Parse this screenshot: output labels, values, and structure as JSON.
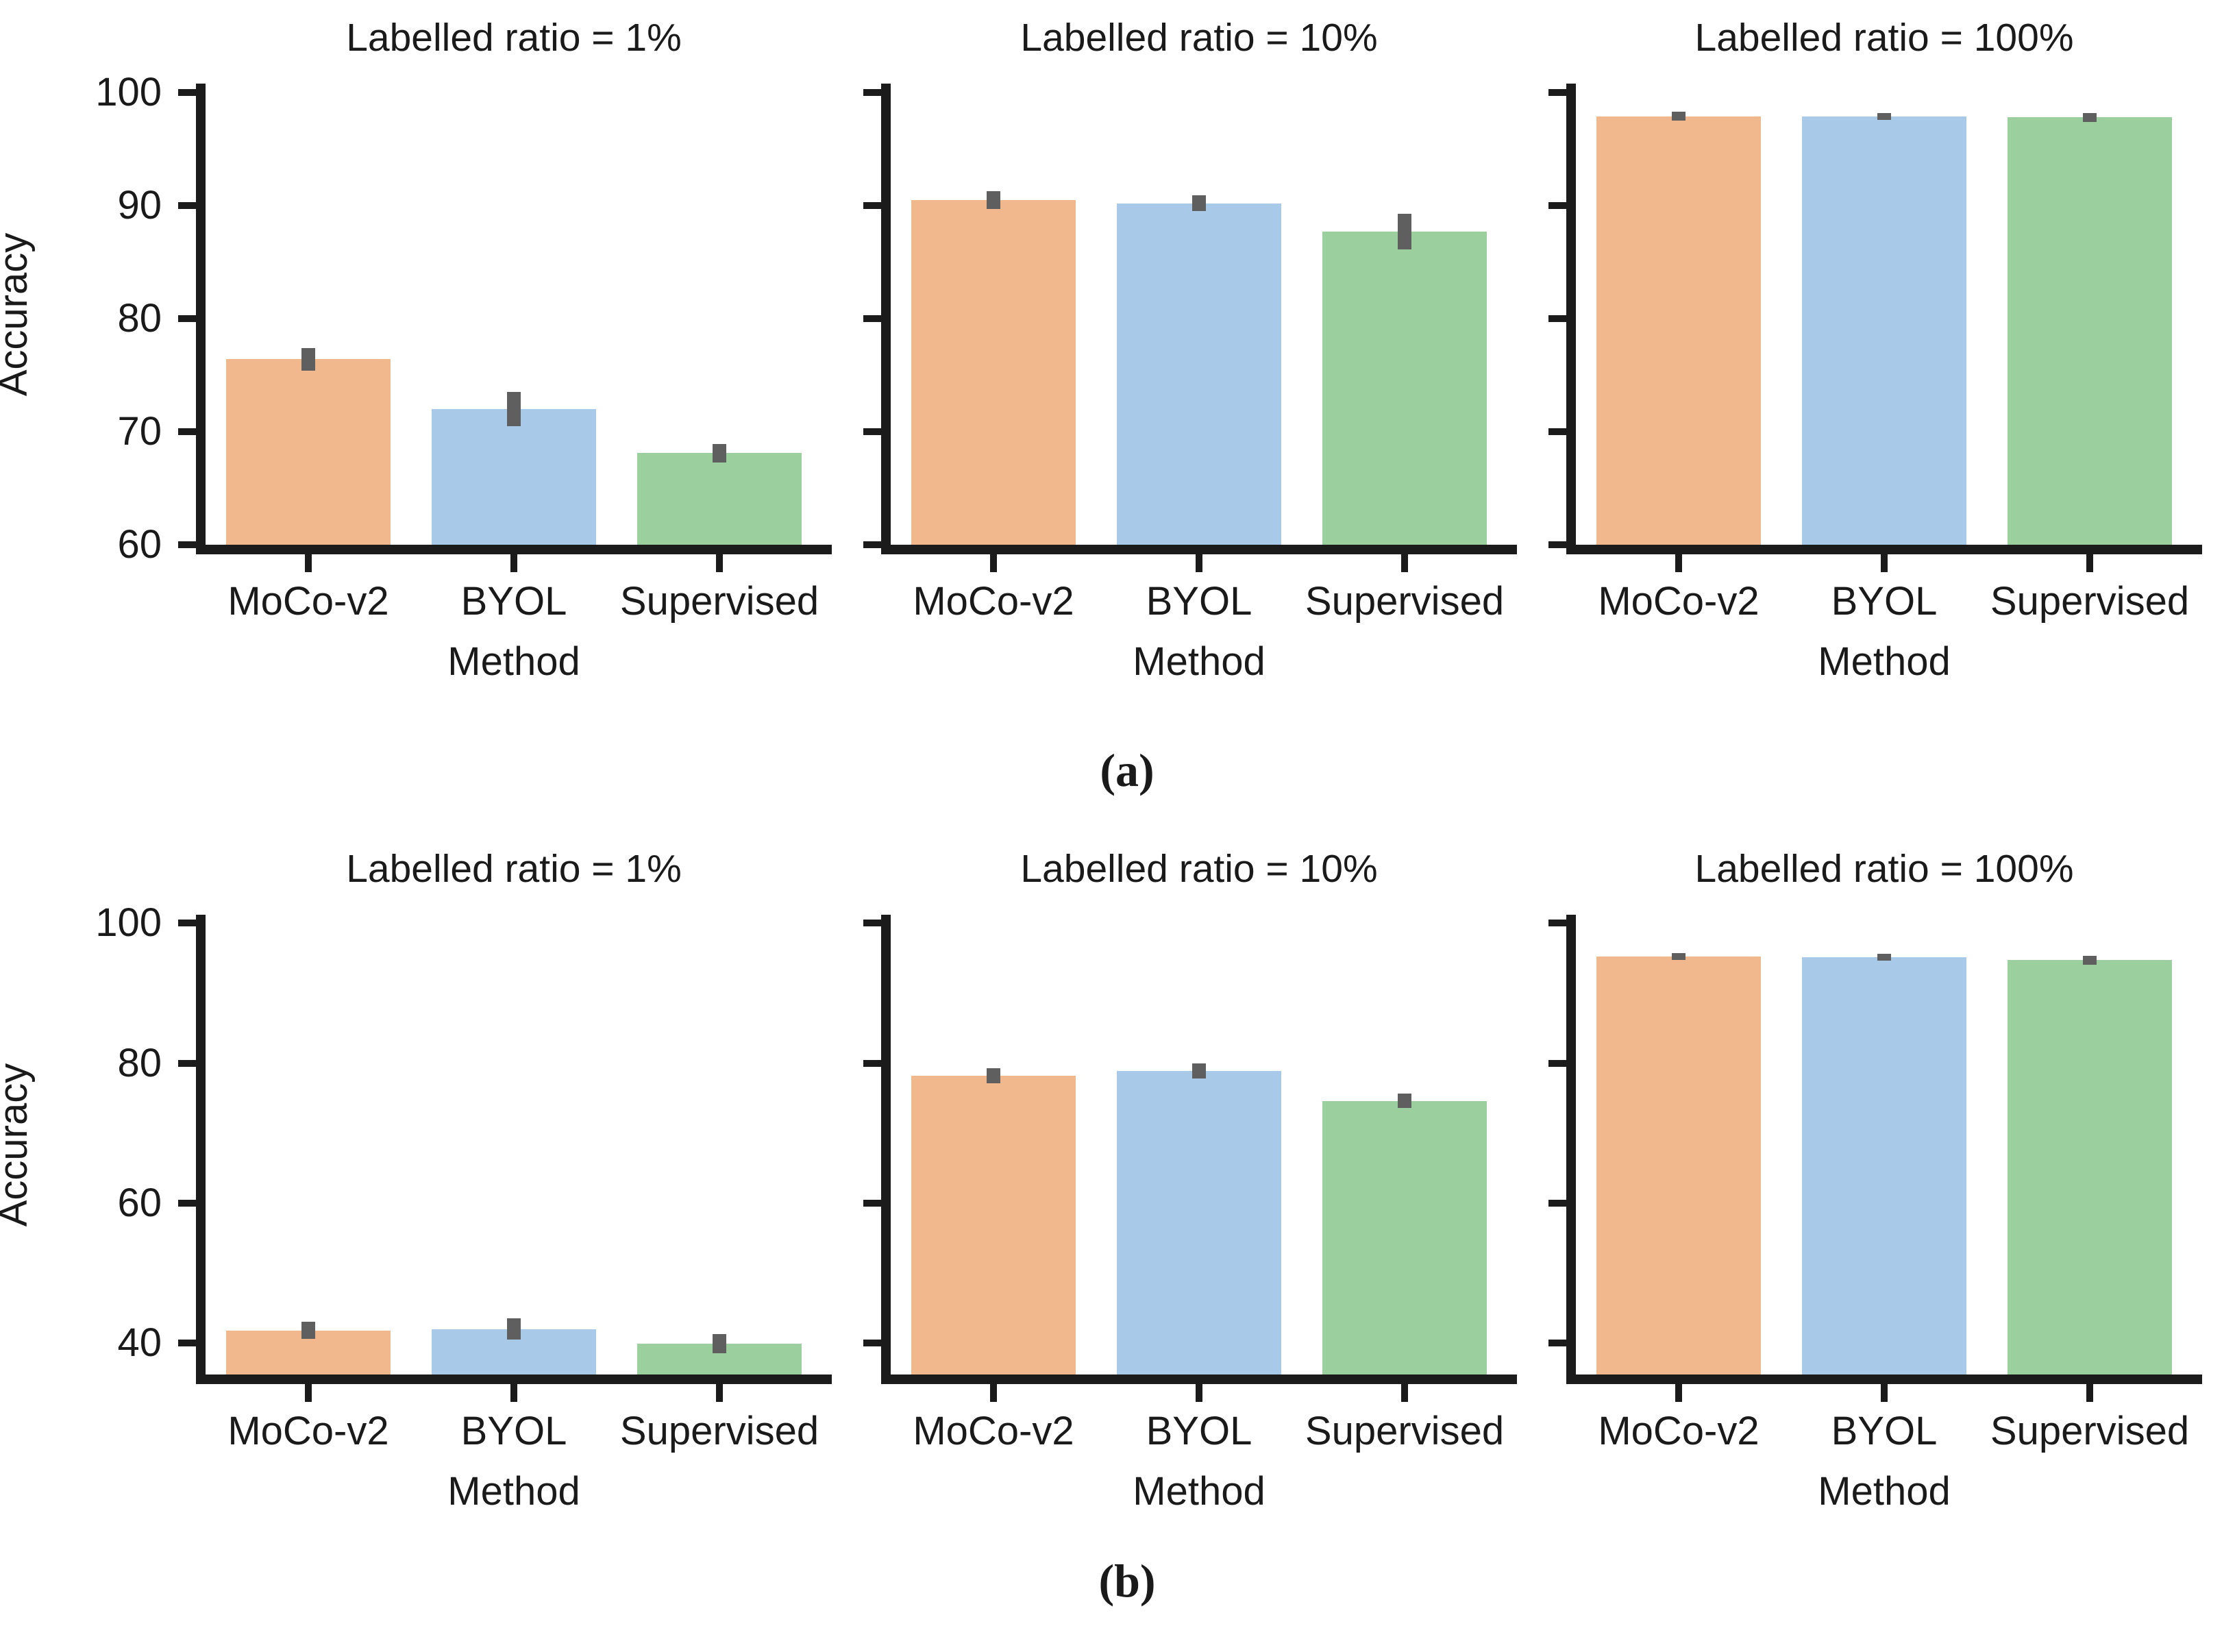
{
  "figure": {
    "ylabel": "Accuracy",
    "xlabel": "Method",
    "caption_a": "(a)",
    "caption_b": "(b)"
  },
  "colors": {
    "moco_v2_bar": "#F0B88C",
    "byol_bar": "#A9C9E8",
    "supervised_bar": "#9BCF9D",
    "error_bar": "#5f5f5f",
    "axis": "#1b1b1b",
    "text": "#1a1a1a"
  },
  "chart_data": [
    {
      "type": "bar",
      "row": "a",
      "panel": 0,
      "title": "Labelled ratio = 1%",
      "categories": [
        "MoCo-v2",
        "BYOL",
        "Supervised"
      ],
      "values": [
        76.4,
        72.0,
        68.1
      ],
      "errors": [
        1.0,
        1.5,
        0.8
      ],
      "xlabel": "Method",
      "ylabel": "Accuracy",
      "ylim": [
        60,
        100.8
      ],
      "yticks": [
        60,
        70,
        80,
        90,
        100
      ],
      "yticklabels": [
        "60",
        "70",
        "80",
        "90",
        "100"
      ],
      "show_ytick_labels": true,
      "grid": false,
      "legend": "none"
    },
    {
      "type": "bar",
      "row": "a",
      "panel": 1,
      "title": "Labelled ratio = 10%",
      "categories": [
        "MoCo-v2",
        "BYOL",
        "Supervised"
      ],
      "values": [
        90.5,
        90.2,
        87.7
      ],
      "errors": [
        0.8,
        0.7,
        1.6
      ],
      "xlabel": "Method",
      "ylabel": "",
      "ylim": [
        60,
        100.8
      ],
      "yticks": [
        60,
        70,
        80,
        90,
        100
      ],
      "yticklabels": [
        "60",
        "70",
        "80",
        "90",
        "100"
      ],
      "show_ytick_labels": false,
      "grid": false,
      "legend": "none"
    },
    {
      "type": "bar",
      "row": "a",
      "panel": 2,
      "title": "Labelled ratio = 100%",
      "categories": [
        "MoCo-v2",
        "BYOL",
        "Supervised"
      ],
      "values": [
        97.9,
        97.9,
        97.8
      ],
      "errors": [
        0.4,
        0.3,
        0.4
      ],
      "xlabel": "Method",
      "ylabel": "",
      "ylim": [
        60,
        100.8
      ],
      "yticks": [
        60,
        70,
        80,
        90,
        100
      ],
      "yticklabels": [
        "60",
        "70",
        "80",
        "90",
        "100"
      ],
      "show_ytick_labels": false,
      "grid": false,
      "legend": "none"
    },
    {
      "type": "bar",
      "row": "b",
      "panel": 0,
      "title": "Labelled ratio = 1%",
      "categories": [
        "MoCo-v2",
        "BYOL",
        "Supervised"
      ],
      "values": [
        41.8,
        42.0,
        39.9
      ],
      "errors": [
        1.2,
        1.5,
        1.4
      ],
      "xlabel": "Method",
      "ylabel": "Accuracy",
      "ylim": [
        35.5,
        101.2
      ],
      "yticks": [
        40,
        60,
        80,
        100
      ],
      "yticklabels": [
        "40",
        "60",
        "80",
        "100"
      ],
      "show_ytick_labels": true,
      "grid": false,
      "legend": "none"
    },
    {
      "type": "bar",
      "row": "b",
      "panel": 1,
      "title": "Labelled ratio = 10%",
      "categories": [
        "MoCo-v2",
        "BYOL",
        "Supervised"
      ],
      "values": [
        78.2,
        78.9,
        74.6
      ],
      "errors": [
        1.1,
        1.1,
        1.0
      ],
      "xlabel": "Method",
      "ylabel": "",
      "ylim": [
        35.5,
        101.2
      ],
      "yticks": [
        40,
        60,
        80,
        100
      ],
      "yticklabels": [
        "40",
        "60",
        "80",
        "100"
      ],
      "show_ytick_labels": false,
      "grid": false,
      "legend": "none"
    },
    {
      "type": "bar",
      "row": "b",
      "panel": 2,
      "title": "Labelled ratio = 100%",
      "categories": [
        "MoCo-v2",
        "BYOL",
        "Supervised"
      ],
      "values": [
        95.2,
        95.1,
        94.7
      ],
      "errors": [
        0.5,
        0.5,
        0.6
      ],
      "xlabel": "Method",
      "ylabel": "",
      "ylim": [
        35.5,
        101.2
      ],
      "yticks": [
        40,
        60,
        80,
        100
      ],
      "yticklabels": [
        "40",
        "60",
        "80",
        "100"
      ],
      "show_ytick_labels": false,
      "grid": false,
      "legend": "none"
    }
  ]
}
